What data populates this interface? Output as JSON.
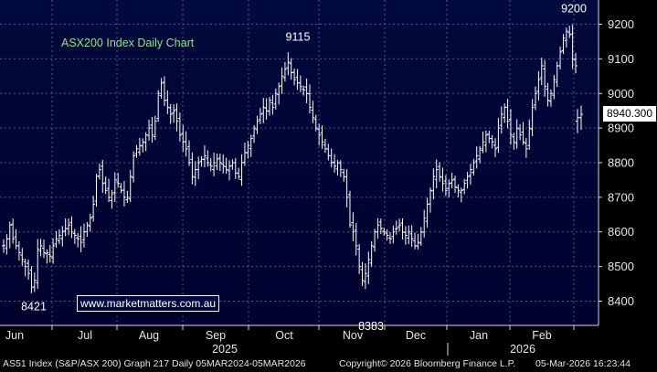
{
  "chart_data": {
    "type": "ohlc",
    "title": "ASX200 Index Daily Chart",
    "ylim": [
      8330,
      9270
    ],
    "y_ticks": [
      8400,
      8500,
      8600,
      8700,
      8800,
      8900,
      9000,
      9100,
      9200
    ],
    "x_ticks": [
      "Jun",
      "Jul",
      "Aug",
      "Sep",
      "Oct",
      "Nov",
      "Dec",
      "Jan",
      "Feb"
    ],
    "year_labels": [
      "2025",
      "2026"
    ],
    "grid": true,
    "last_price_label": "8940.300",
    "annotations": [
      {
        "text": "8421",
        "value": 8421
      },
      {
        "text": "9115",
        "value": 9115
      },
      {
        "text": "8383",
        "value": 8383
      },
      {
        "text": "9200",
        "value": 9200
      }
    ],
    "closes": [
      8560,
      8580,
      8620,
      8580,
      8560,
      8540,
      8520,
      8500,
      8480,
      8440,
      8460,
      8550,
      8560,
      8540,
      8540,
      8530,
      8560,
      8580,
      8590,
      8600,
      8610,
      8620,
      8600,
      8590,
      8580,
      8570,
      8600,
      8620,
      8640,
      8680,
      8760,
      8780,
      8740,
      8720,
      8700,
      8710,
      8750,
      8740,
      8720,
      8700,
      8700,
      8760,
      8820,
      8840,
      8850,
      8860,
      8880,
      8900,
      8880,
      8920,
      9000,
      9030,
      8980,
      8960,
      8940,
      8950,
      8920,
      8880,
      8860,
      8840,
      8800,
      8760,
      8780,
      8800,
      8810,
      8820,
      8800,
      8790,
      8800,
      8810,
      8800,
      8790,
      8780,
      8790,
      8800,
      8770,
      8760,
      8800,
      8830,
      8850,
      8870,
      8900,
      8920,
      8940,
      8960,
      8950,
      8980,
      8960,
      9000,
      9020,
      9050,
      9070,
      9090,
      9060,
      9040,
      9030,
      9020,
      9010,
      9000,
      8960,
      8930,
      8900,
      8880,
      8860,
      8840,
      8820,
      8800,
      8790,
      8800,
      8780,
      8760,
      8700,
      8620,
      8600,
      8560,
      8500,
      8460,
      8480,
      8520,
      8560,
      8600,
      8620,
      8610,
      8600,
      8590,
      8580,
      8600,
      8610,
      8620,
      8600,
      8590,
      8600,
      8580,
      8560,
      8570,
      8600,
      8640,
      8680,
      8720,
      8760,
      8780,
      8760,
      8740,
      8720,
      8740,
      8750,
      8730,
      8720,
      8720,
      8740,
      8760,
      8780,
      8800,
      8820,
      8840,
      8860,
      8880,
      8870,
      8860,
      8840,
      8900,
      8940,
      8960,
      8920,
      8880,
      8860,
      8900,
      8880,
      8860,
      8840,
      8900,
      8960,
      9000,
      9040,
      9080,
      9020,
      8980,
      9000,
      9040,
      9080,
      9120,
      9160,
      9180,
      9170,
      9100,
      9080
    ],
    "tail": [
      8930,
      8940
    ]
  },
  "footer": {
    "left": "AS51 Index (S&P/ASX 200) Graph 217 Daily 05MAR2024-05MAR2026",
    "middle": "Copyright© 2026 Bloomberg Finance L.P.",
    "right": "05-Mar-2026 16:23:44"
  },
  "watermark": "www.marketmatters.com.au",
  "colors": {
    "background_top": "#000a3c",
    "background_bottom": "#00003a",
    "bars": "#ffffff",
    "grid": "#3b4a7a",
    "title": "#8fe38f"
  }
}
